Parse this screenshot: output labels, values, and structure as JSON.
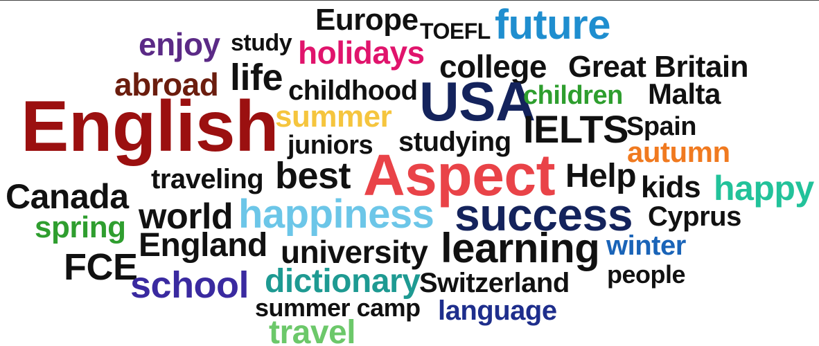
{
  "word_cloud": {
    "words": [
      {
        "text": "Europe",
        "color": "#111111"
      },
      {
        "text": "TOEFL",
        "color": "#111111"
      },
      {
        "text": "future",
        "color": "#1f8ecf"
      },
      {
        "text": "enjoy",
        "color": "#5b2a86"
      },
      {
        "text": "study",
        "color": "#111111"
      },
      {
        "text": "holidays",
        "color": "#e0146c"
      },
      {
        "text": "college",
        "color": "#111111"
      },
      {
        "text": "Great Britain",
        "color": "#111111"
      },
      {
        "text": "abroad",
        "color": "#6b1d0e"
      },
      {
        "text": "life",
        "color": "#111111"
      },
      {
        "text": "childhood",
        "color": "#111111"
      },
      {
        "text": "USA",
        "color": "#14235c"
      },
      {
        "text": "children",
        "color": "#2e9e2e"
      },
      {
        "text": "Malta",
        "color": "#111111"
      },
      {
        "text": "English",
        "color": "#9b1010"
      },
      {
        "text": "summer",
        "color": "#f5c53e"
      },
      {
        "text": "IELTS",
        "color": "#111111"
      },
      {
        "text": "Spain",
        "color": "#111111"
      },
      {
        "text": "juniors",
        "color": "#111111"
      },
      {
        "text": "studying",
        "color": "#111111"
      },
      {
        "text": "autumn",
        "color": "#f07a20"
      },
      {
        "text": "traveling",
        "color": "#111111"
      },
      {
        "text": "best",
        "color": "#111111"
      },
      {
        "text": "Aspect",
        "color": "#e94348"
      },
      {
        "text": "Help",
        "color": "#111111"
      },
      {
        "text": "kids",
        "color": "#111111"
      },
      {
        "text": "happy",
        "color": "#22c29a"
      },
      {
        "text": "Canada",
        "color": "#111111"
      },
      {
        "text": "world",
        "color": "#111111"
      },
      {
        "text": "happiness",
        "color": "#6cc6e8"
      },
      {
        "text": "success",
        "color": "#14235c"
      },
      {
        "text": "Cyprus",
        "color": "#111111"
      },
      {
        "text": "spring",
        "color": "#2f9e2f"
      },
      {
        "text": "England",
        "color": "#111111"
      },
      {
        "text": "university",
        "color": "#111111"
      },
      {
        "text": "learning",
        "color": "#111111"
      },
      {
        "text": "winter",
        "color": "#1a64b8"
      },
      {
        "text": "FCE",
        "color": "#111111"
      },
      {
        "text": "school",
        "color": "#3a2aa0"
      },
      {
        "text": "dictionary",
        "color": "#1e9a92"
      },
      {
        "text": "Switzerland",
        "color": "#111111"
      },
      {
        "text": "people",
        "color": "#111111"
      },
      {
        "text": "summer camp",
        "color": "#111111"
      },
      {
        "text": "language",
        "color": "#1e2e8c"
      },
      {
        "text": "travel",
        "color": "#6cc86a"
      }
    ]
  }
}
